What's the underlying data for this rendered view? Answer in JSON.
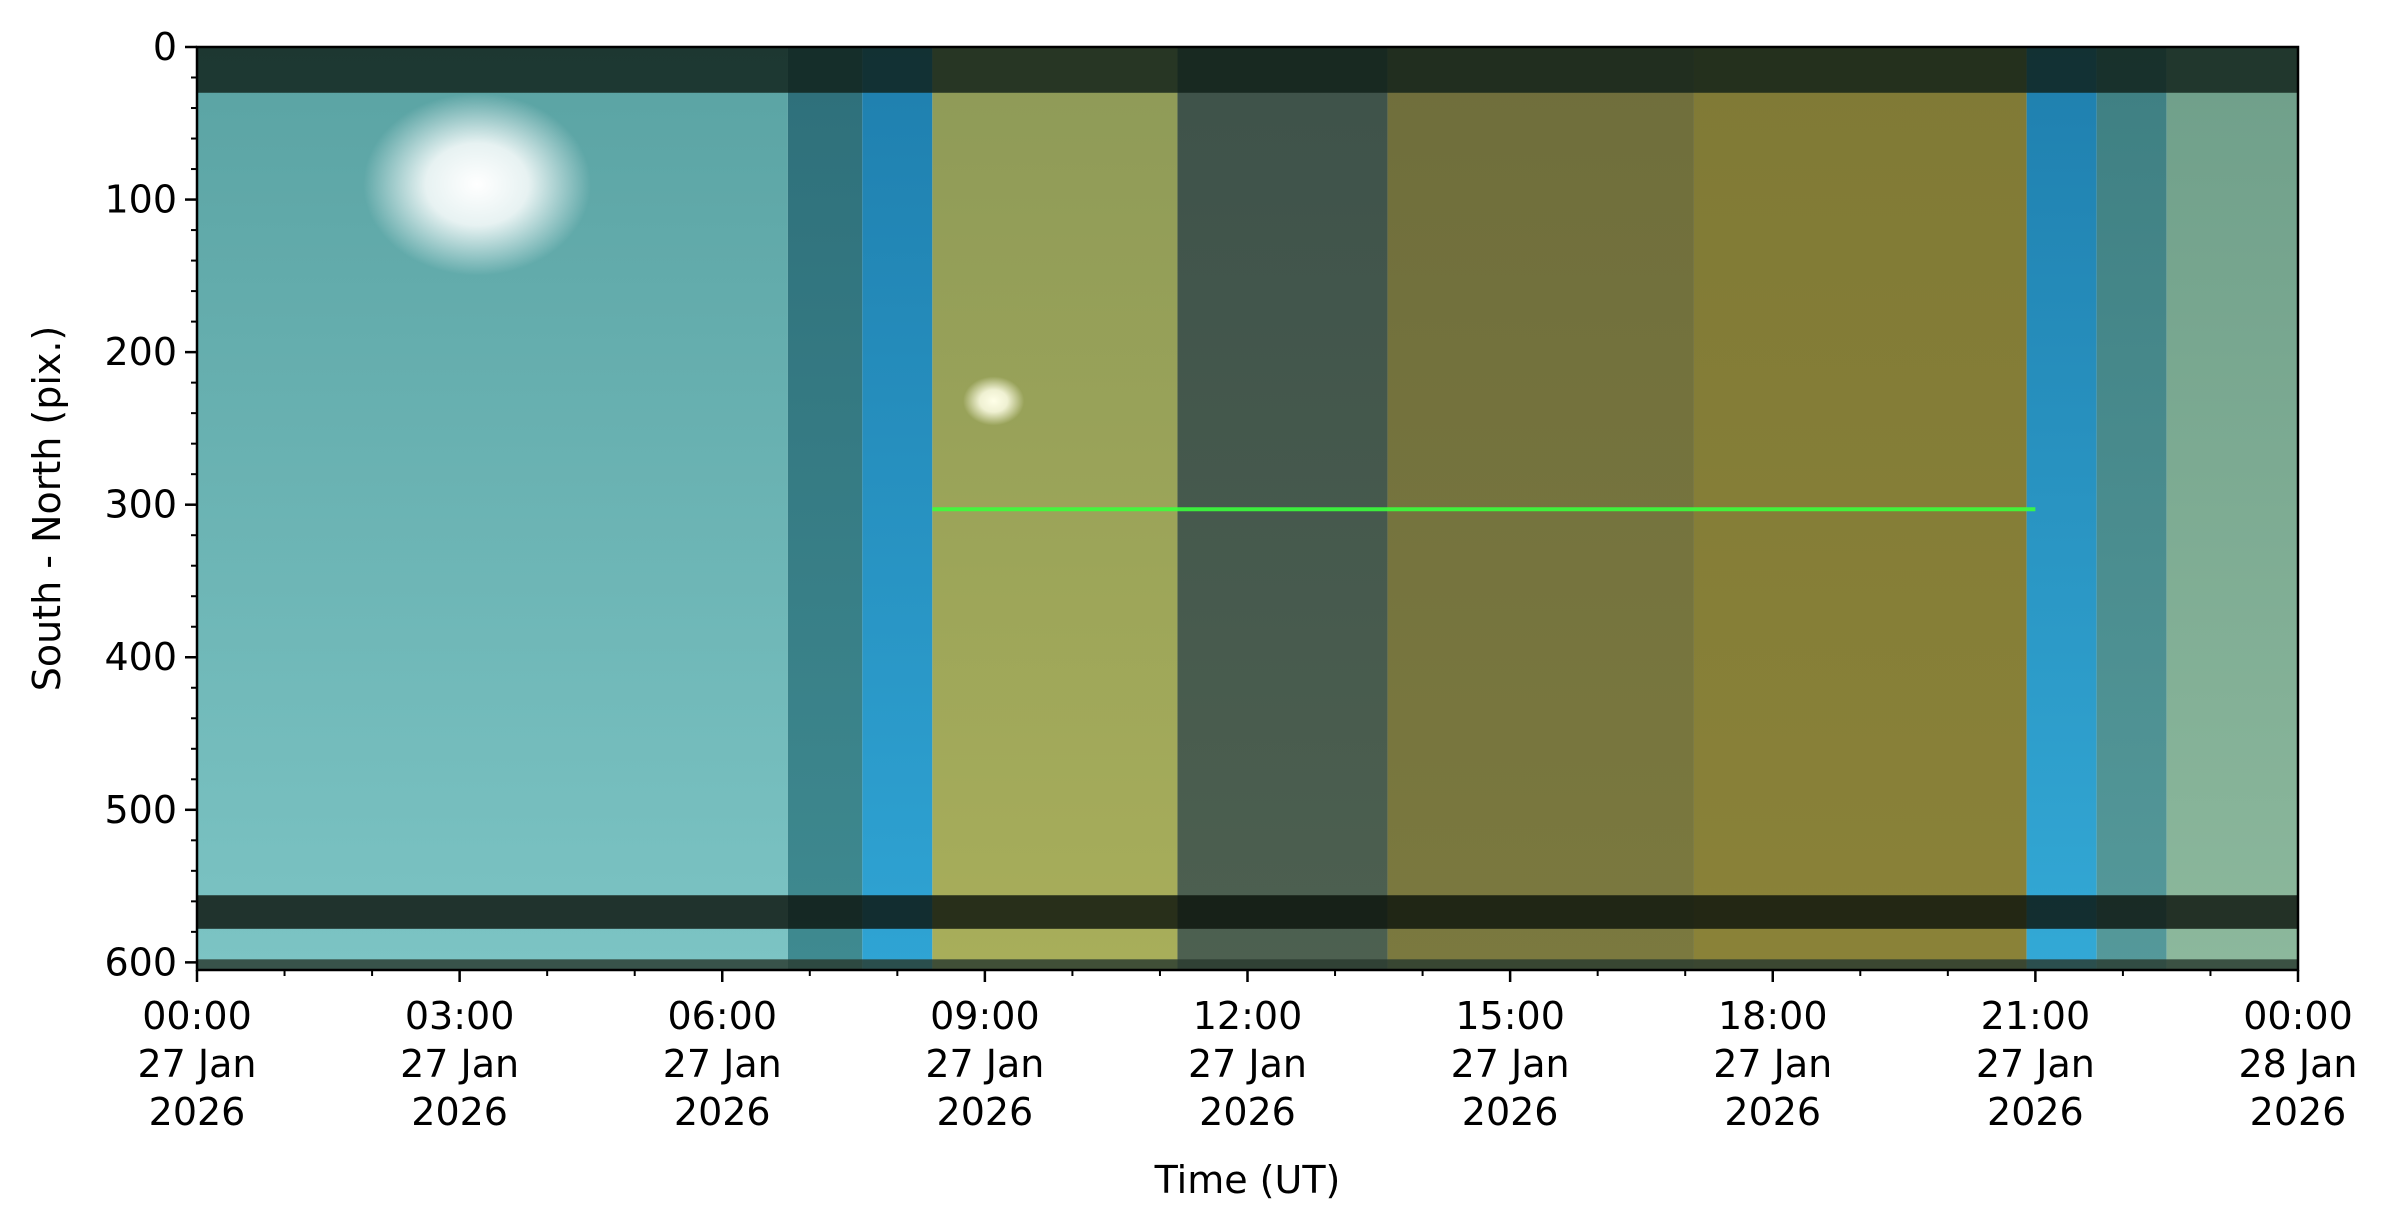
{
  "chart_data": {
    "type": "heatmap",
    "xlabel": "Time (UT)",
    "ylabel": "South - North (pix.)",
    "x_range": [
      "2026-01-27T00:00",
      "2026-01-28T00:00"
    ],
    "y_range": [
      0,
      605
    ],
    "y_inverted": true,
    "y_ticks": [
      0,
      100,
      200,
      300,
      400,
      500,
      600
    ],
    "x_ticks": [
      {
        "time": "00:00",
        "day": "27 Jan",
        "year": "2026",
        "hour": 0
      },
      {
        "time": "03:00",
        "day": "27 Jan",
        "year": "2026",
        "hour": 3
      },
      {
        "time": "06:00",
        "day": "27 Jan",
        "year": "2026",
        "hour": 6
      },
      {
        "time": "09:00",
        "day": "27 Jan",
        "year": "2026",
        "hour": 9
      },
      {
        "time": "12:00",
        "day": "27 Jan",
        "year": "2026",
        "hour": 12
      },
      {
        "time": "15:00",
        "day": "27 Jan",
        "year": "2026",
        "hour": 15
      },
      {
        "time": "18:00",
        "day": "27 Jan",
        "year": "2026",
        "hour": 18
      },
      {
        "time": "21:00",
        "day": "27 Jan",
        "year": "2026",
        "hour": 21
      },
      {
        "time": "00:00",
        "day": "28 Jan",
        "year": "2026",
        "hour": 24
      }
    ],
    "bands": [
      {
        "start_hour": 0.0,
        "end_hour": 6.75,
        "color": "#5aa3a3",
        "color_bottom": "#7cc4c4"
      },
      {
        "start_hour": 6.75,
        "end_hour": 7.6,
        "color": "#2e6f7a",
        "color_bottom": "#3f8a90"
      },
      {
        "start_hour": 7.6,
        "end_hour": 8.4,
        "color": "#1f7fae",
        "color_bottom": "#2fa4d4"
      },
      {
        "start_hour": 8.4,
        "end_hour": 11.2,
        "color": "#8e9a58",
        "color_bottom": "#a8ae5a"
      },
      {
        "start_hour": 11.2,
        "end_hour": 13.6,
        "color": "#3e524a",
        "color_bottom": "#4d6050"
      },
      {
        "start_hour": 13.6,
        "end_hour": 17.1,
        "color": "#6f6e3c",
        "color_bottom": "#7b793f"
      },
      {
        "start_hour": 17.1,
        "end_hour": 20.9,
        "color": "#807a36",
        "color_bottom": "#8a8238"
      },
      {
        "start_hour": 20.9,
        "end_hour": 21.7,
        "color": "#1f7fae",
        "color_bottom": "#33a9d6"
      },
      {
        "start_hour": 21.7,
        "end_hour": 22.5,
        "color": "#3e7f82",
        "color_bottom": "#55999a"
      },
      {
        "start_hour": 22.5,
        "end_hour": 24.0,
        "color": "#6f9f8a",
        "color_bottom": "#8cb89c"
      }
    ],
    "green_line": {
      "y": 303,
      "start_hour": 8.4,
      "end_hour": 21.0,
      "color": "#3cff3c"
    },
    "dark_bands": [
      {
        "y_start": 0,
        "y_end": 30,
        "color": "#102018"
      },
      {
        "y_start": 556,
        "y_end": 578,
        "color": "#0c130c"
      },
      {
        "y_start": 598,
        "y_end": 605,
        "color": "#2a3a30"
      }
    ],
    "bright_spots": [
      {
        "hour": 3.2,
        "y": 90,
        "radius_hours": 1.3,
        "color": "#ffffff"
      },
      {
        "hour": 9.1,
        "y": 232,
        "radius_hours": 0.35,
        "color": "#ffffe8"
      }
    ]
  }
}
